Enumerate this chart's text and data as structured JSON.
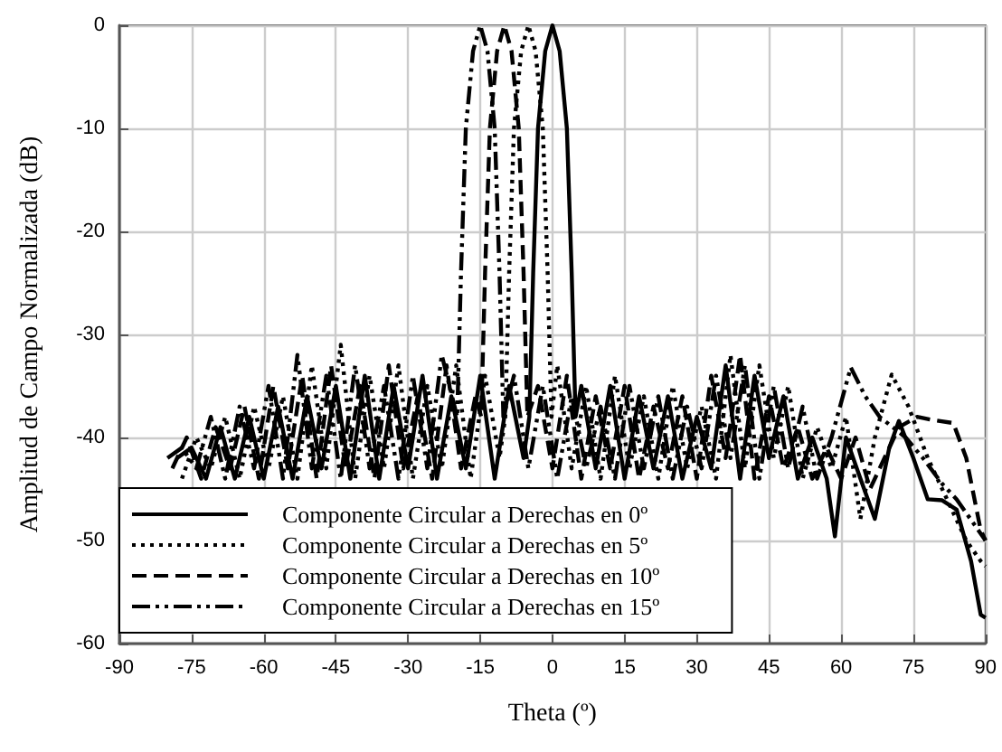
{
  "chart_data": {
    "type": "line",
    "xlabel": "Theta (º)",
    "ylabel": "Amplitud de Campo Normalizada (dB)",
    "xlim": [
      -90,
      90
    ],
    "xticks": [
      -90,
      -75,
      -60,
      -45,
      -30,
      -15,
      0,
      15,
      30,
      45,
      60,
      75,
      90
    ],
    "ylim": [
      -60,
      0
    ],
    "yticks": [
      -60,
      -50,
      -40,
      -30,
      -20,
      -10,
      0
    ],
    "grid": true,
    "legend": "bottom left",
    "marker": "none",
    "series": [
      {
        "name": "Componente Circular a Derechas en 0º",
        "color": "#000000",
        "line_style": "solid",
        "x": [
          -78,
          -75,
          -72,
          -69,
          -66,
          -63,
          -60,
          -57,
          -54,
          -51,
          -48,
          -45,
          -42,
          -39,
          -36,
          -33,
          -30,
          -27,
          -24,
          -21,
          -18,
          -15,
          -12,
          -9,
          -6,
          -4.8,
          -4,
          -3,
          -1.5,
          0,
          1.5,
          3,
          4,
          4.8,
          6,
          9,
          12,
          15,
          18,
          21,
          24,
          27,
          30,
          33,
          36,
          39,
          42,
          45,
          48,
          51,
          54,
          57,
          58.7,
          61,
          64,
          67,
          70,
          72,
          75,
          78,
          81,
          84,
          87,
          89,
          90
        ],
        "values": [
          -42,
          -41,
          -44,
          -39,
          -44,
          -38,
          -44,
          -37,
          -44,
          -36,
          -43,
          -35,
          -44,
          -34,
          -44,
          -35,
          -43,
          -34,
          -44,
          -36,
          -43,
          -34,
          -44,
          -35,
          -42,
          -38,
          -24,
          -10,
          -2.5,
          0,
          -2.5,
          -10,
          -24,
          -38,
          -35,
          -43,
          -35,
          -44,
          -36,
          -43,
          -36,
          -44,
          -38,
          -43,
          -33,
          -44,
          -34,
          -42,
          -36,
          -44,
          -40,
          -44,
          -49.6,
          -40,
          -44,
          -47.9,
          -41,
          -38.4,
          -42,
          -46,
          -46.1,
          -47,
          -52,
          -57.2,
          -57.5
        ]
      },
      {
        "name": "Componente Circular a Derechas en 5º",
        "color": "#000000",
        "line_style": "dotted",
        "x": [
          -77,
          -74,
          -71,
          -68,
          -65,
          -62,
          -59,
          -56,
          -53,
          -50,
          -47,
          -44,
          -41,
          -38,
          -35,
          -32,
          -29,
          -26,
          -23,
          -20,
          -17,
          -14,
          -11,
          -9.8,
          -9,
          -8,
          -6.5,
          -5,
          -3.5,
          -2,
          -1,
          -0.2,
          1,
          4,
          7,
          10,
          13,
          16,
          19,
          22,
          25,
          28,
          31,
          34,
          37,
          40,
          43,
          46,
          49,
          52,
          55,
          58,
          61,
          64,
          67,
          70.5,
          74,
          78,
          82,
          86,
          89,
          90
        ],
        "values": [
          -44,
          -40,
          -43,
          -38,
          -44,
          -37,
          -43,
          -36,
          -44,
          -33,
          -43,
          -31,
          -44,
          -34,
          -43,
          -33,
          -44,
          -35,
          -43,
          -33,
          -44,
          -34,
          -42,
          -38,
          -24,
          -10,
          -2.5,
          0,
          -2.5,
          -10,
          -24,
          -38,
          -33,
          -43,
          -35,
          -44,
          -34,
          -43,
          -36,
          -44,
          -35,
          -43,
          -37,
          -44,
          -32,
          -43,
          -33,
          -42,
          -35,
          -44,
          -39,
          -43,
          -38,
          -47.9,
          -40,
          -33.9,
          -37,
          -42,
          -46,
          -50,
          -52,
          -52.5
        ]
      },
      {
        "name": "Componente Circular a Derechas en 10º",
        "color": "#000000",
        "line_style": "dashed",
        "x": [
          -79,
          -76,
          -73,
          -70,
          -67,
          -64,
          -61,
          -58,
          -55,
          -52,
          -49,
          -46,
          -43,
          -40,
          -37,
          -34,
          -31,
          -28,
          -25,
          -22,
          -19,
          -16,
          -14.8,
          -14,
          -13,
          -11.5,
          -10,
          -8.5,
          -7,
          -6,
          -5.2,
          -3,
          0,
          3,
          6,
          9,
          12,
          15,
          18,
          21,
          24,
          27,
          30,
          33,
          36,
          39,
          42,
          45,
          48,
          51,
          54,
          57,
          60,
          63,
          66,
          69,
          72,
          75.8,
          79,
          83.3,
          86,
          89,
          90
        ],
        "values": [
          -43,
          -40,
          -44,
          -39,
          -43,
          -37,
          -44,
          -35,
          -43,
          -34,
          -44,
          -33,
          -43,
          -35,
          -44,
          -33,
          -43,
          -36,
          -44,
          -33,
          -43,
          -36,
          -38,
          -24,
          -10,
          -2.5,
          0,
          -2.5,
          -10,
          -24,
          -38,
          -35,
          -43,
          -34,
          -44,
          -36,
          -43,
          -35,
          -44,
          -37,
          -43,
          -36,
          -44,
          -34,
          -42,
          -32,
          -44,
          -36,
          -43,
          -39,
          -44,
          -41,
          -44,
          -40,
          -45,
          -42,
          -39,
          -38,
          -38.3,
          -38.6,
          -42,
          -49,
          -50
        ]
      },
      {
        "name": "Componente Circular a Derechas en 15º",
        "color": "#000000",
        "line_style": "dashdot",
        "x": [
          -80,
          -77,
          -74,
          -71,
          -68,
          -65,
          -62,
          -59,
          -56,
          -53,
          -50,
          -47,
          -44,
          -41,
          -38,
          -35,
          -32,
          -29,
          -26,
          -23,
          -19.8,
          -19,
          -18,
          -16.5,
          -15,
          -13.5,
          -12,
          -11,
          -10.2,
          -8,
          -5,
          -2,
          1,
          4,
          7,
          10,
          13,
          16,
          19,
          22,
          25,
          28,
          31,
          34,
          37,
          40,
          43,
          46,
          49,
          52,
          55,
          58,
          62,
          65,
          68,
          73.4,
          77,
          81,
          84,
          87,
          90
        ],
        "values": [
          -42,
          -41,
          -43,
          -38,
          -44,
          -37,
          -43,
          -35,
          -44,
          -32,
          -43,
          -34,
          -44,
          -33,
          -43,
          -35,
          -44,
          -34,
          -43,
          -32,
          -38,
          -24,
          -10,
          -2.5,
          0,
          -2.5,
          -10,
          -24,
          -38,
          -34,
          -43,
          -35,
          -44,
          -36,
          -43,
          -37,
          -44,
          -35,
          -43,
          -36,
          -44,
          -37,
          -43,
          -34,
          -42,
          -33,
          -44,
          -35,
          -43,
          -37,
          -44,
          -40,
          -33.2,
          -36,
          -38,
          -40,
          -42,
          -44.5,
          -46,
          -48,
          -50
        ]
      }
    ]
  }
}
